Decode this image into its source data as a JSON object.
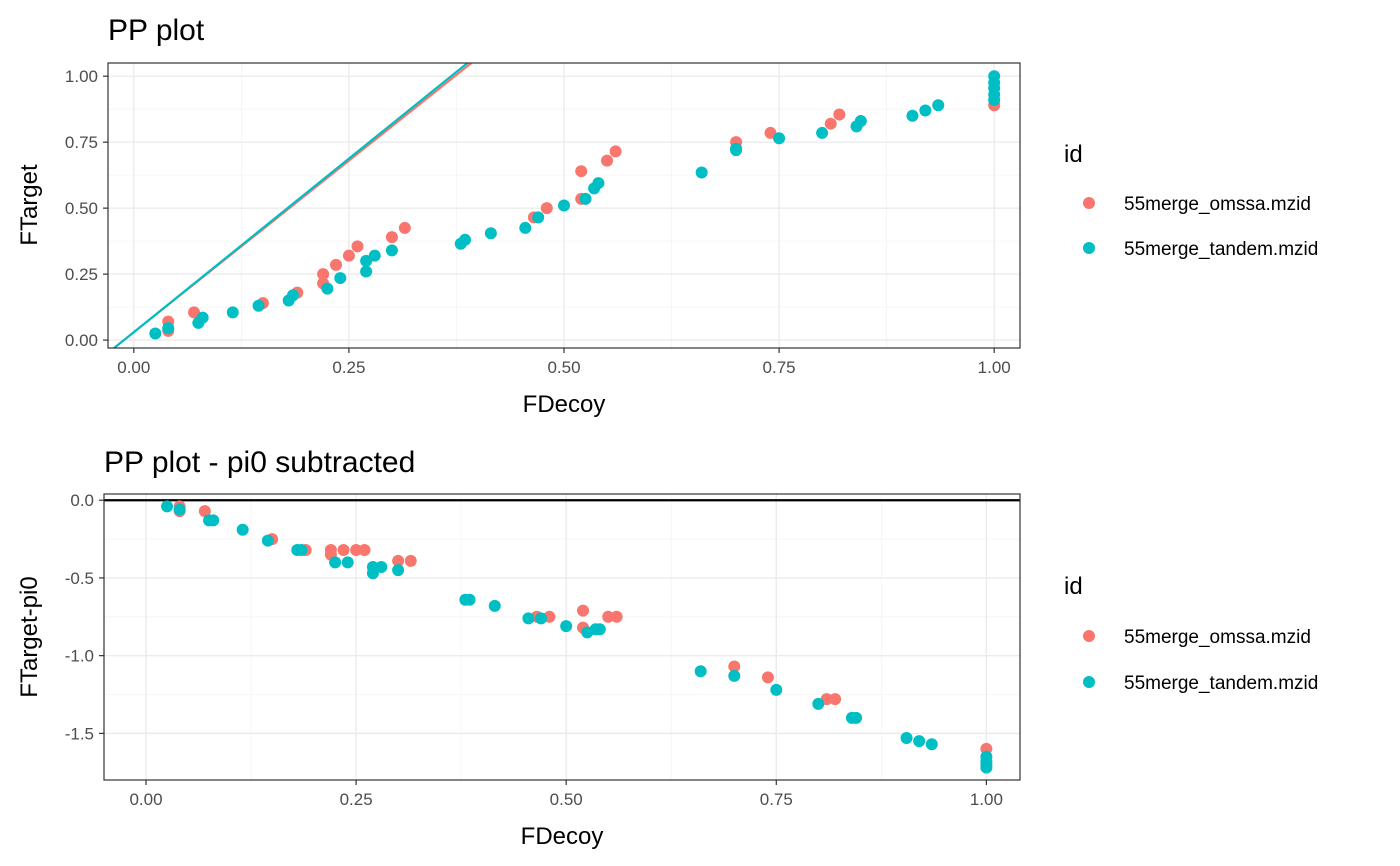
{
  "colors": {
    "omssa": "#F8766D",
    "tandem": "#00BFC4",
    "text": "#000000",
    "tick_text": "#4d4d4d",
    "grid": "#ebebeb"
  },
  "legend": {
    "title": "id",
    "entries": [
      {
        "key": "omssa",
        "label": "55merge_omssa.mzid"
      },
      {
        "key": "tandem",
        "label": "55merge_tandem.mzid"
      }
    ]
  },
  "chart_data": [
    {
      "type": "scatter",
      "title": "PP plot",
      "xlabel": "FDecoy",
      "ylabel": "FTarget",
      "xlim": [
        -0.03,
        1.03
      ],
      "ylim": [
        -0.03,
        1.05
      ],
      "xticks": [
        0,
        0.25,
        0.5,
        0.75,
        1
      ],
      "xtick_labels": [
        "0.00",
        "0.25",
        "0.50",
        "0.75",
        "1.00"
      ],
      "yticks": [
        0,
        0.25,
        0.5,
        0.75,
        1
      ],
      "ytick_labels": [
        "0.00",
        "0.25",
        "0.50",
        "0.75",
        "1.00"
      ],
      "grid": true,
      "legend_position": "right",
      "lines": [
        {
          "series": "omssa",
          "slope": 2.6,
          "intercept": 0.03
        },
        {
          "series": "tandem",
          "slope": 2.63,
          "intercept": 0.03
        }
      ],
      "series": [
        {
          "key": "omssa",
          "name": "55merge_omssa.mzid",
          "points": [
            [
              0.04,
              0.035
            ],
            [
              0.04,
              0.07
            ],
            [
              0.07,
              0.105
            ],
            [
              0.15,
              0.14
            ],
            [
              0.19,
              0.18
            ],
            [
              0.22,
              0.215
            ],
            [
              0.22,
              0.25
            ],
            [
              0.235,
              0.285
            ],
            [
              0.25,
              0.32
            ],
            [
              0.26,
              0.355
            ],
            [
              0.3,
              0.39
            ],
            [
              0.315,
              0.425
            ],
            [
              0.465,
              0.465
            ],
            [
              0.48,
              0.5
            ],
            [
              0.52,
              0.535
            ],
            [
              0.52,
              0.64
            ],
            [
              0.55,
              0.68
            ],
            [
              0.56,
              0.715
            ],
            [
              0.7,
              0.75
            ],
            [
              0.74,
              0.785
            ],
            [
              0.81,
              0.82
            ],
            [
              0.82,
              0.855
            ],
            [
              1.0,
              0.89
            ]
          ]
        },
        {
          "key": "tandem",
          "name": "55merge_tandem.mzid",
          "points": [
            [
              0.025,
              0.025
            ],
            [
              0.04,
              0.045
            ],
            [
              0.075,
              0.065
            ],
            [
              0.08,
              0.085
            ],
            [
              0.115,
              0.105
            ],
            [
              0.145,
              0.13
            ],
            [
              0.18,
              0.15
            ],
            [
              0.185,
              0.17
            ],
            [
              0.225,
              0.195
            ],
            [
              0.24,
              0.235
            ],
            [
              0.27,
              0.26
            ],
            [
              0.27,
              0.3
            ],
            [
              0.28,
              0.32
            ],
            [
              0.3,
              0.34
            ],
            [
              0.38,
              0.365
            ],
            [
              0.385,
              0.38
            ],
            [
              0.415,
              0.405
            ],
            [
              0.455,
              0.425
            ],
            [
              0.47,
              0.465
            ],
            [
              0.5,
              0.51
            ],
            [
              0.525,
              0.535
            ],
            [
              0.535,
              0.575
            ],
            [
              0.54,
              0.595
            ],
            [
              0.66,
              0.635
            ],
            [
              0.7,
              0.725
            ],
            [
              0.7,
              0.72
            ],
            [
              0.75,
              0.765
            ],
            [
              0.8,
              0.785
            ],
            [
              0.84,
              0.81
            ],
            [
              0.845,
              0.83
            ],
            [
              0.905,
              0.85
            ],
            [
              0.92,
              0.87
            ],
            [
              0.935,
              0.89
            ],
            [
              1.0,
              0.91
            ],
            [
              1.0,
              0.93
            ],
            [
              1.0,
              0.955
            ],
            [
              1.0,
              0.975
            ],
            [
              1.0,
              1.0
            ]
          ]
        }
      ]
    },
    {
      "type": "scatter",
      "title": "PP plot - pi0 subtracted",
      "xlabel": "FDecoy",
      "ylabel": "FTarget-pi0",
      "xlim": [
        -0.05,
        1.04
      ],
      "ylim": [
        -1.8,
        0.04
      ],
      "xticks": [
        0,
        0.25,
        0.5,
        0.75,
        1
      ],
      "xtick_labels": [
        "0.00",
        "0.25",
        "0.50",
        "0.75",
        "1.00"
      ],
      "yticks": [
        0,
        -0.5,
        -1,
        -1.5
      ],
      "ytick_labels": [
        "0.0",
        "-0.5",
        "-1.0",
        "-1.5"
      ],
      "grid": true,
      "legend_position": "right",
      "hline": 0,
      "series": [
        {
          "key": "omssa",
          "name": "55merge_omssa.mzid",
          "points": [
            [
              0.04,
              -0.04
            ],
            [
              0.04,
              -0.07
            ],
            [
              0.07,
              -0.07
            ],
            [
              0.15,
              -0.25
            ],
            [
              0.19,
              -0.32
            ],
            [
              0.22,
              -0.35
            ],
            [
              0.22,
              -0.32
            ],
            [
              0.235,
              -0.32
            ],
            [
              0.25,
              -0.32
            ],
            [
              0.26,
              -0.32
            ],
            [
              0.3,
              -0.39
            ],
            [
              0.315,
              -0.39
            ],
            [
              0.465,
              -0.75
            ],
            [
              0.48,
              -0.75
            ],
            [
              0.52,
              -0.71
            ],
            [
              0.52,
              -0.82
            ],
            [
              0.55,
              -0.75
            ],
            [
              0.56,
              -0.75
            ],
            [
              0.7,
              -1.07
            ],
            [
              0.74,
              -1.14
            ],
            [
              0.81,
              -1.28
            ],
            [
              0.82,
              -1.28
            ],
            [
              1.0,
              -1.6
            ]
          ]
        },
        {
          "key": "tandem",
          "name": "55merge_tandem.mzid",
          "points": [
            [
              0.025,
              -0.04
            ],
            [
              0.04,
              -0.06
            ],
            [
              0.075,
              -0.13
            ],
            [
              0.08,
              -0.13
            ],
            [
              0.115,
              -0.19
            ],
            [
              0.145,
              -0.26
            ],
            [
              0.18,
              -0.32
            ],
            [
              0.185,
              -0.32
            ],
            [
              0.225,
              -0.4
            ],
            [
              0.24,
              -0.4
            ],
            [
              0.27,
              -0.47
            ],
            [
              0.27,
              -0.43
            ],
            [
              0.28,
              -0.43
            ],
            [
              0.3,
              -0.45
            ],
            [
              0.38,
              -0.64
            ],
            [
              0.385,
              -0.64
            ],
            [
              0.415,
              -0.68
            ],
            [
              0.455,
              -0.76
            ],
            [
              0.47,
              -0.76
            ],
            [
              0.5,
              -0.81
            ],
            [
              0.525,
              -0.85
            ],
            [
              0.535,
              -0.83
            ],
            [
              0.54,
              -0.83
            ],
            [
              0.66,
              -1.1
            ],
            [
              0.7,
              -1.13
            ],
            [
              0.75,
              -1.22
            ],
            [
              0.8,
              -1.31
            ],
            [
              0.84,
              -1.4
            ],
            [
              0.845,
              -1.4
            ],
            [
              0.905,
              -1.53
            ],
            [
              0.92,
              -1.55
            ],
            [
              0.935,
              -1.57
            ],
            [
              1.0,
              -1.65
            ],
            [
              1.0,
              -1.68
            ],
            [
              1.0,
              -1.7
            ],
            [
              1.0,
              -1.72
            ]
          ]
        }
      ]
    }
  ]
}
